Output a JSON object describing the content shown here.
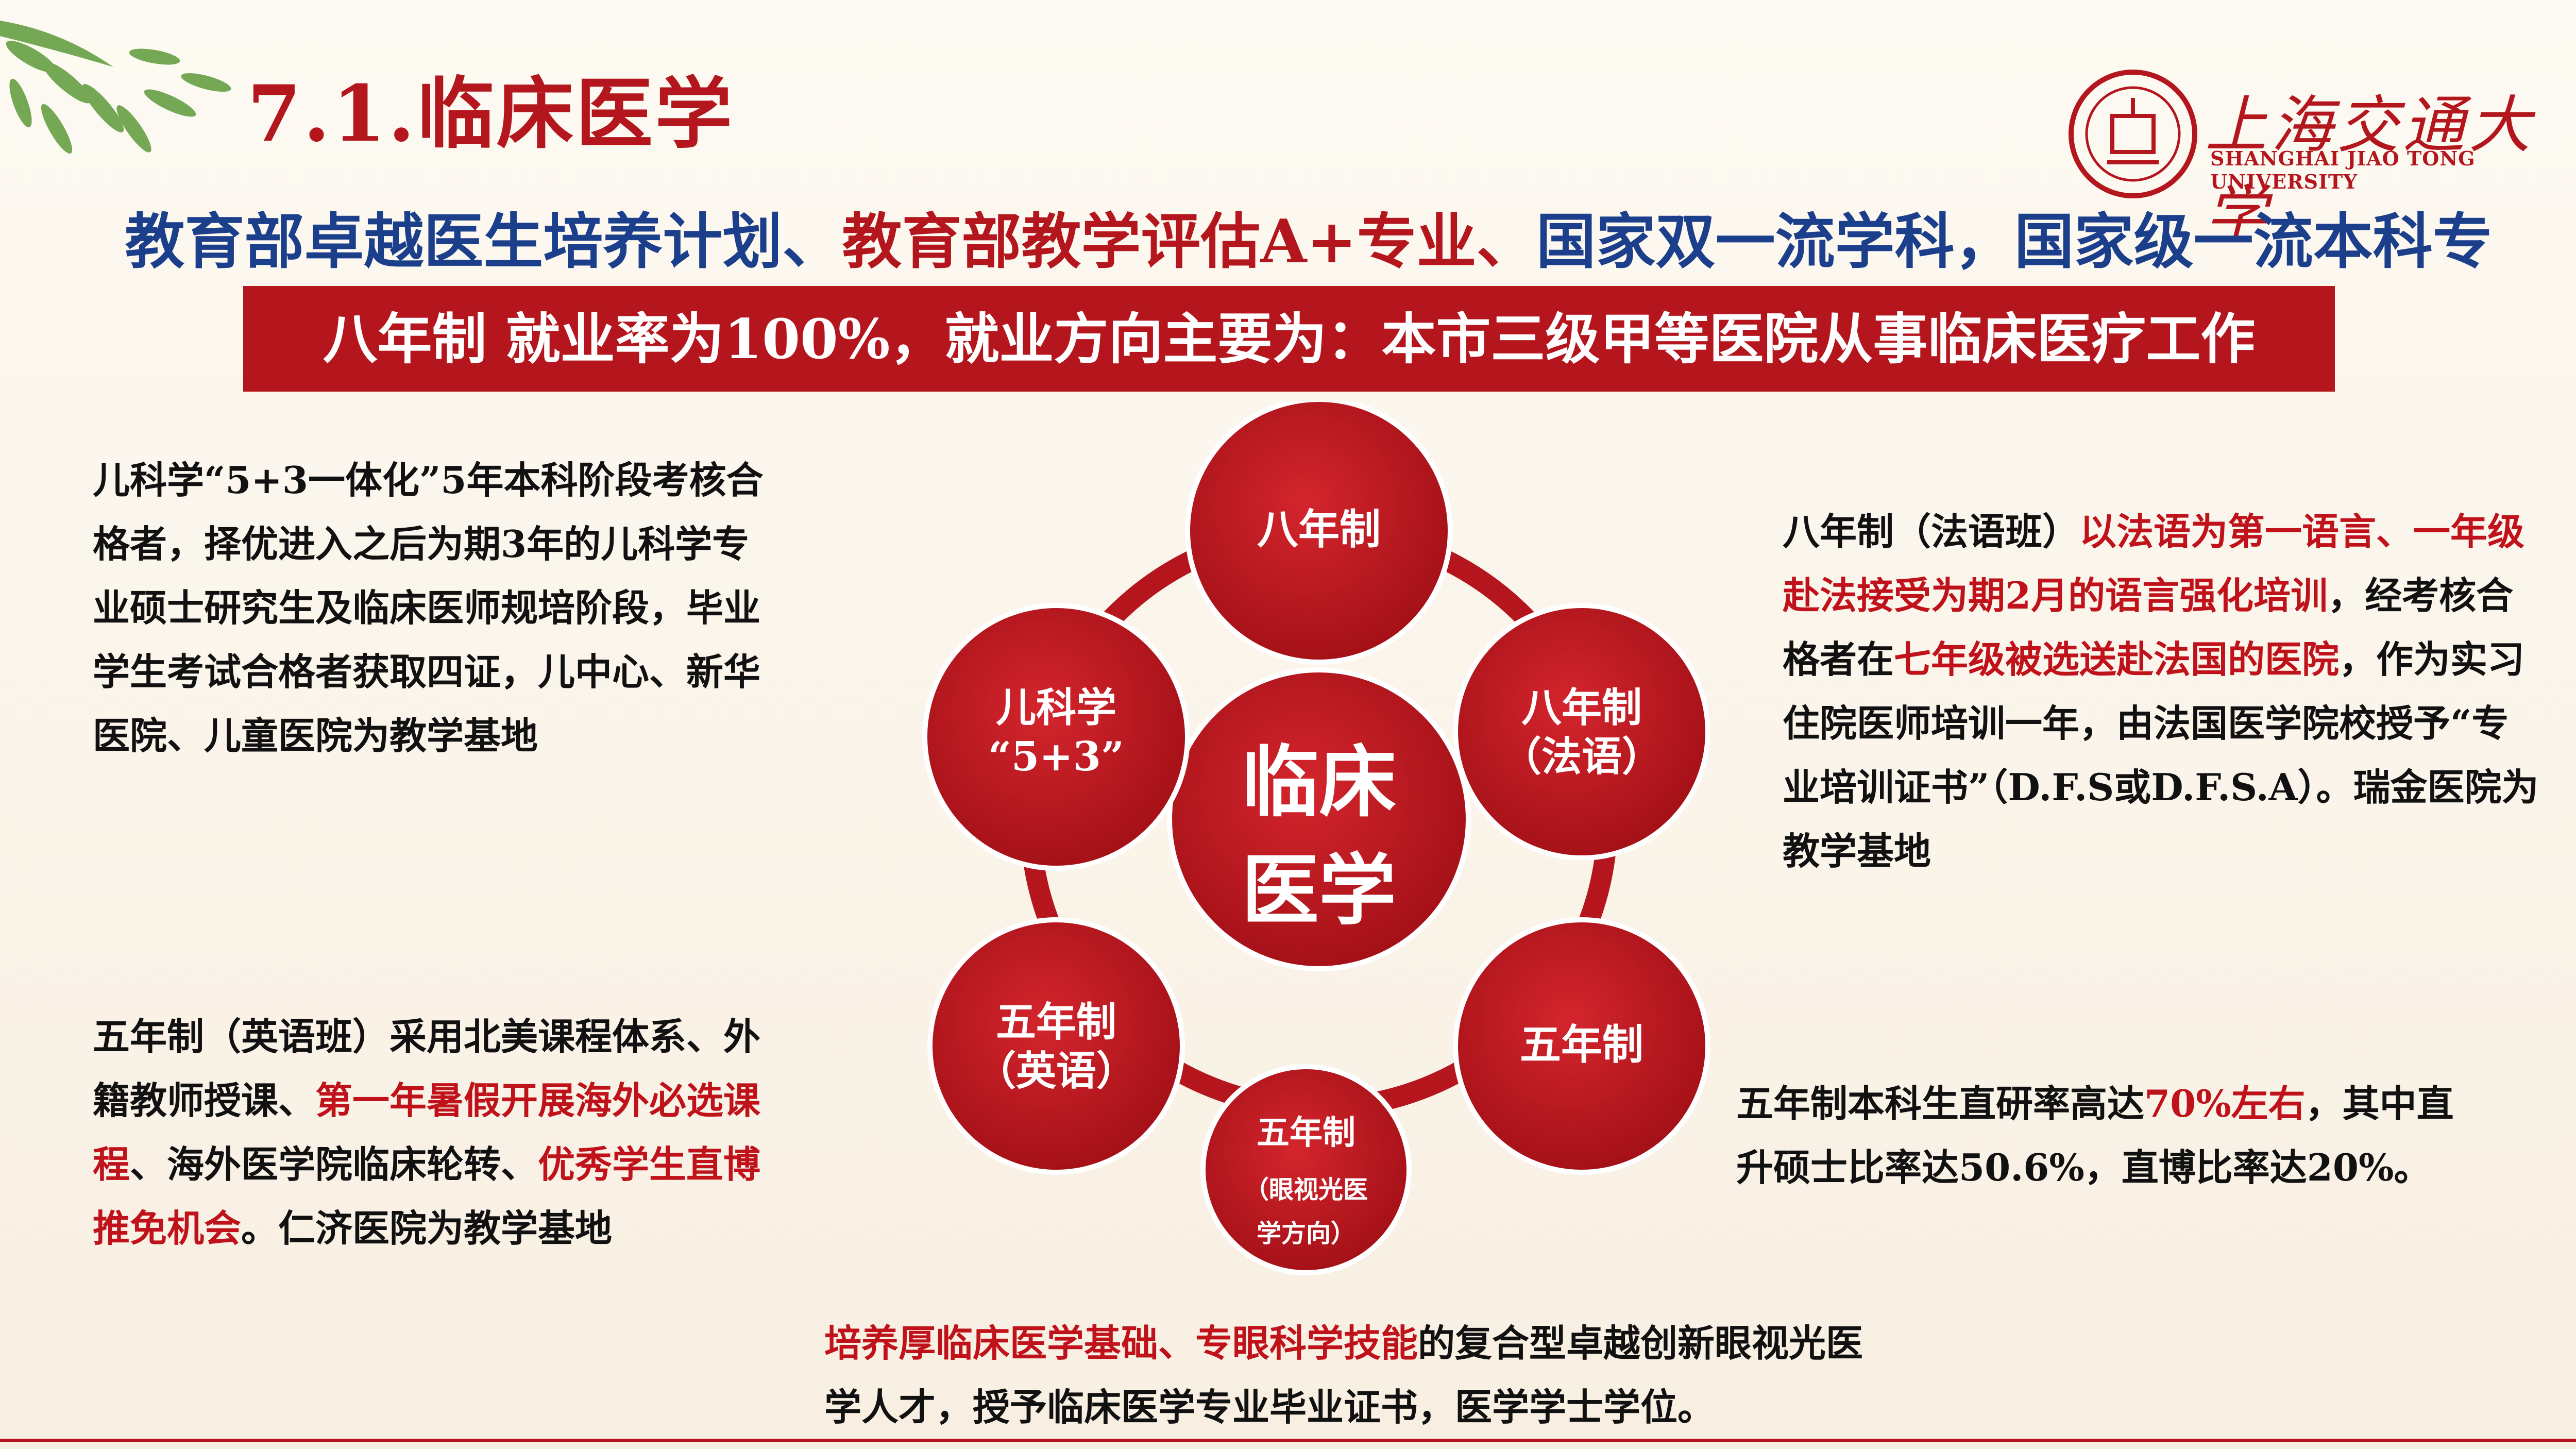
{
  "header": {
    "title": "7.1.临床医学",
    "logo_cn": "上海交通大学",
    "logo_en": "SHANGHAI JIAO TONG UNIVERSITY"
  },
  "subtitle": {
    "part1": "教育部卓越医生培养计划、",
    "part2": "教育部教学评估A+专业、",
    "part3": "国家双一流学科，国家级一流本科专业"
  },
  "banner": {
    "text": "八年制 就业率为100%，就业方向主要为：本市三级甲等医院从事临床医疗工作"
  },
  "left_top": {
    "text": "儿科学“5+3一体化”5年本科阶段考核合格者，择优进入之后为期3年的儿科学专业硕士研究生及临床医师规培阶段，毕业学生考试合格者获取四证，儿中心、新华医院、儿童医院为教学基地"
  },
  "left_bottom": {
    "t1": "五年制（英语班）采用北美课程体系、外籍教师授课、",
    "h1": "第一年暑假开展海外必选课程",
    "t2": "、海外医学院临床轮转、",
    "h2": "优秀学生直博推免机会",
    "t3": "。仁济医院为教学基地"
  },
  "right_top": {
    "t1": "八年制（法语班）",
    "h1": "以法语为第一语言、一年级赴法接受为期2月的语言强化培训",
    "t2": "，经考核合格者在",
    "h2": "七年级被选送赴法国的医院",
    "t3": "，作为实习住院医师培训一年，由法国医学院校授予“专业培训证书”（D.F.S或D.F.S.A）。瑞金医院为教学基地"
  },
  "right_bottom": {
    "t1": "五年制本科生直研率高达",
    "h1": "70%左右",
    "t2": "，其中直升硕士比率达50.6%，直博比率达20%。"
  },
  "bottom": {
    "h1": "培养厚临床医学基础、专眼科学技能",
    "t1": "的复合型卓越创新眼视光医学人才，授予临床医学专业毕业证书，医学学士学位。"
  },
  "diagram": {
    "center": [
      "临床",
      "医学"
    ],
    "nodes": [
      {
        "lines": [
          "八年制"
        ]
      },
      {
        "lines": [
          "八年制",
          "（法语）"
        ]
      },
      {
        "lines": [
          "五年制"
        ]
      },
      {
        "lines": [
          "五年制",
          "（眼视光医",
          "学方向）"
        ]
      },
      {
        "lines": [
          "五年制",
          "（英语）"
        ]
      },
      {
        "lines": [
          "儿科学",
          "“5+3”"
        ]
      }
    ]
  },
  "colors": {
    "accent_red": "#b5161e",
    "navy": "#1c3f8c"
  }
}
